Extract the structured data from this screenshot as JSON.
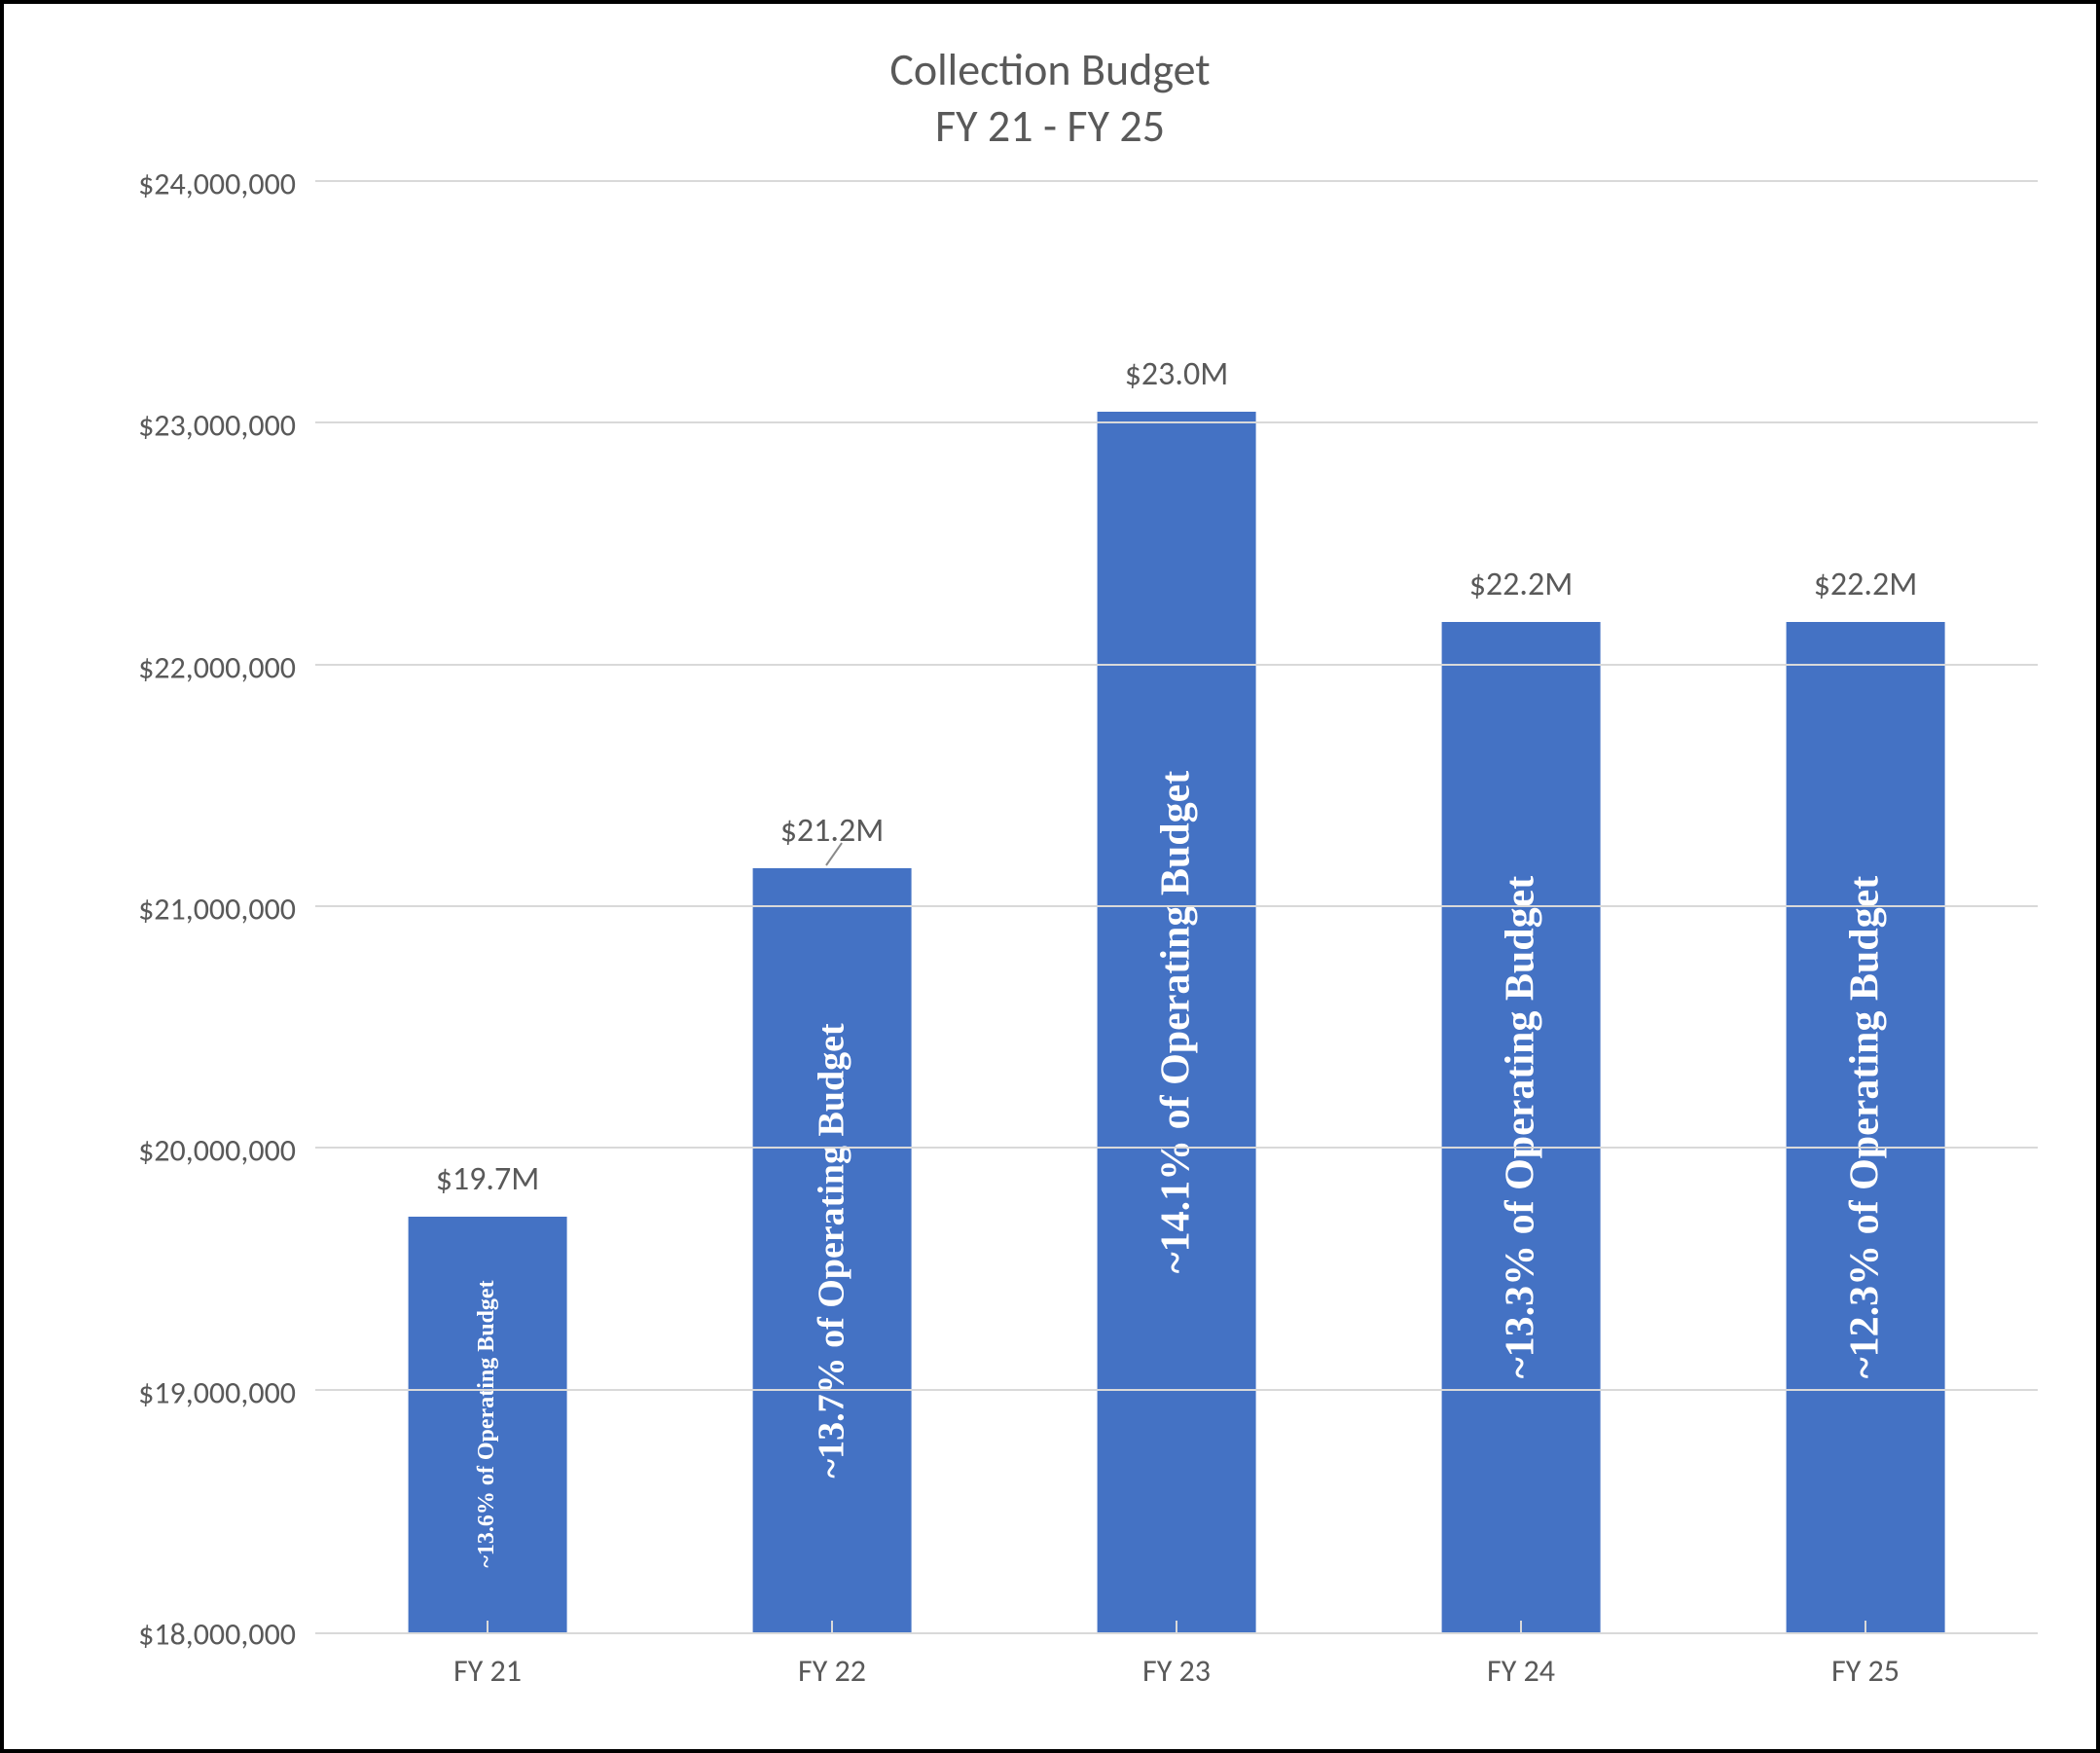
{
  "chart": {
    "type": "bar",
    "title_line1": "Collection Budget",
    "title_line2": "FY 21 - FY 25",
    "title_fontsize": 46,
    "title_color": "#595959",
    "background_color": "#ffffff",
    "border_color": "#000000",
    "grid_color": "#d9d9d9",
    "axis_label_color": "#595959",
    "axis_fontsize": 32,
    "bar_color": "#4472c4",
    "bar_width_ratio": 0.46,
    "ylim": [
      18000000,
      24000000
    ],
    "ytick_step": 1000000,
    "yticks": [
      {
        "value": 18000000,
        "label": "$18,000,000"
      },
      {
        "value": 19000000,
        "label": "$19,000,000"
      },
      {
        "value": 20000000,
        "label": "$20,000,000"
      },
      {
        "value": 21000000,
        "label": "$21,000,000"
      },
      {
        "value": 22000000,
        "label": "$22,000,000"
      },
      {
        "value": 23000000,
        "label": "$23,000,000"
      },
      {
        "value": 24000000,
        "label": "$24,000,000"
      }
    ],
    "categories": [
      "FY 21",
      "FY 22",
      "FY 23",
      "FY 24",
      "FY 25"
    ],
    "values": [
      19720000,
      21160000,
      23050000,
      22180000,
      22180000
    ],
    "top_labels": [
      "$19.7M",
      "$21.2M",
      "$23.0M",
      "$22.2M",
      "$22.2M"
    ],
    "top_label_fontsize": 34,
    "top_label_color": "#595959",
    "inside_labels": [
      "~13.6% of Operating Budget",
      "~13.7% of Operating Budget",
      "~14.1% of Operating Budget",
      "~13.3% of Operating Budget",
      "~12.3% of Operating Budget"
    ],
    "inside_label_color": "#ffffff",
    "inside_label_font": "Times New Roman",
    "inside_label_weight": "bold",
    "inside_label_fontsizes": [
      24,
      38,
      42,
      42,
      42
    ],
    "leader_line_on_bar_index": 1,
    "leader_color": "#8a8a8a"
  }
}
